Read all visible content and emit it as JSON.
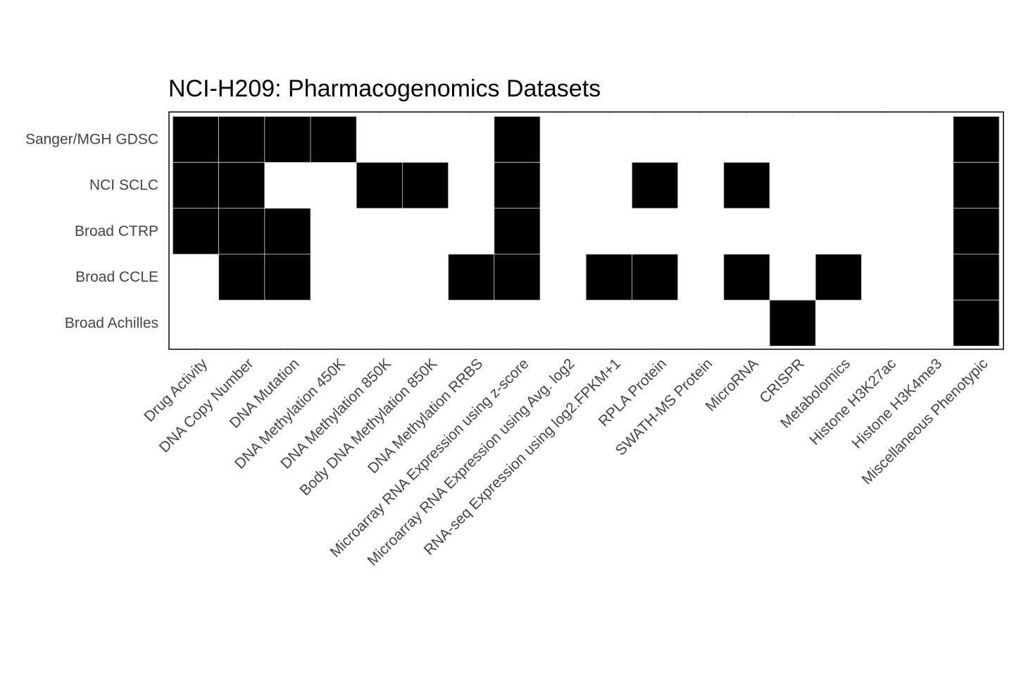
{
  "chart_data": {
    "type": "heatmap",
    "title": "NCI-H209: Pharmacogenomics Datasets",
    "xlabel": "",
    "ylabel": "",
    "grid": false,
    "legend": "none",
    "fill_color": "#000000",
    "empty_color": "#ffffff",
    "border_color": "#000000",
    "cell_line_color": "#cccccc",
    "columns": [
      "Drug Activity",
      "DNA Copy Number",
      "DNA Mutation",
      "DNA Methylation 450K",
      "DNA Methylation 850K",
      "Body DNA Methylation 850K",
      "DNA Methylation RRBS",
      "Microarray RNA Expression using z-score",
      "Microarray RNA Expression using Avg. log2",
      "RNA-seq Expression using log2.FPKM+1",
      "RPLA Protein",
      "SWATH-MS Protein",
      "MicroRNA",
      "CRISPR",
      "Metabolomics",
      "Histone H3K27ac",
      "Histone H3K4me3",
      "Miscellaneous Phenotypic"
    ],
    "rows": [
      "Sanger/MGH GDSC",
      "NCI SCLC",
      "Broad CTRP",
      "Broad CCLE",
      "Broad Achilles"
    ],
    "values": [
      [
        1,
        1,
        1,
        1,
        0,
        0,
        0,
        1,
        0,
        0,
        0,
        0,
        0,
        0,
        0,
        0,
        0,
        1
      ],
      [
        1,
        1,
        0,
        0,
        1,
        1,
        0,
        1,
        0,
        0,
        1,
        0,
        1,
        0,
        0,
        0,
        0,
        1
      ],
      [
        1,
        1,
        1,
        0,
        0,
        0,
        0,
        1,
        0,
        0,
        0,
        0,
        0,
        0,
        0,
        0,
        0,
        1
      ],
      [
        0,
        1,
        1,
        0,
        0,
        0,
        1,
        1,
        0,
        1,
        1,
        0,
        1,
        0,
        1,
        0,
        0,
        1
      ],
      [
        0,
        0,
        0,
        0,
        0,
        0,
        0,
        0,
        0,
        0,
        0,
        0,
        0,
        1,
        0,
        0,
        0,
        1
      ]
    ]
  }
}
